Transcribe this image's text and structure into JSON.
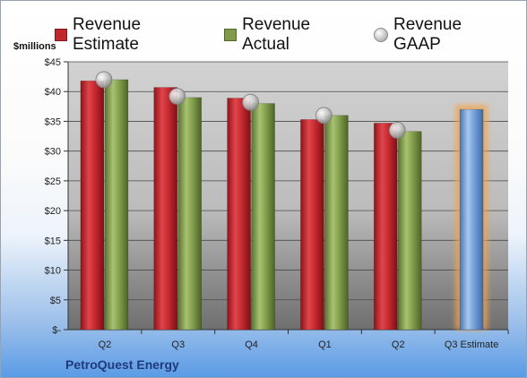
{
  "chart_data": {
    "type": "bar",
    "categories": [
      "Q2",
      "Q3",
      "Q4",
      "Q1",
      "Q2",
      "Q3 Estimate"
    ],
    "y_unit_label": "$millions",
    "ylim": [
      0,
      45
    ],
    "y_ticks": [
      {
        "value": 0,
        "label": "$-"
      },
      {
        "value": 5,
        "label": "$5"
      },
      {
        "value": 10,
        "label": "$10"
      },
      {
        "value": 15,
        "label": "$15"
      },
      {
        "value": 20,
        "label": "$20"
      },
      {
        "value": 25,
        "label": "$25"
      },
      {
        "value": 30,
        "label": "$30"
      },
      {
        "value": 35,
        "label": "$35"
      },
      {
        "value": 40,
        "label": "$40"
      },
      {
        "value": 45,
        "label": "$45"
      }
    ],
    "series": [
      {
        "name": "Revenue Estimate",
        "kind": "bar",
        "color": "#c0272d",
        "values": [
          41.8,
          40.7,
          38.9,
          35.3,
          34.7,
          null
        ]
      },
      {
        "name": "Revenue Actual",
        "kind": "bar",
        "color": "#7f9a48",
        "values": [
          42.0,
          39.0,
          38.0,
          36.0,
          33.3,
          null
        ]
      },
      {
        "name": "Revenue GAAP",
        "kind": "marker",
        "color": "#bdbdbd",
        "values": [
          42.0,
          39.2,
          38.2,
          36.0,
          33.5,
          null
        ]
      }
    ],
    "estimate_bar": {
      "category_index": 5,
      "value": 37.0,
      "color": "#6e9bd3",
      "glow": "#f5a347"
    },
    "legend_position": "top",
    "grid": true
  },
  "footer": {
    "company": "PetroQuest Energy"
  }
}
